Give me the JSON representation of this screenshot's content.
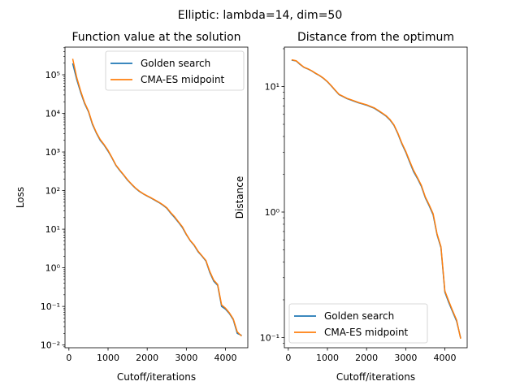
{
  "figure": {
    "suptitle": "Elliptic: lambda=14, dim=50"
  },
  "colors": {
    "golden": "#1f77b4",
    "cma": "#ff7f0e",
    "axis": "#000000",
    "legend_border": "#cccccc"
  },
  "chart_data": [
    {
      "type": "line",
      "title": "Function value at the solution",
      "xlabel": "Cutoff/iterations",
      "ylabel": "Loss",
      "xlim": [
        -100,
        4570
      ],
      "ylim": [
        0.0085,
        520000
      ],
      "yscale": "log",
      "xticks": [
        0,
        1000,
        2000,
        3000,
        4000
      ],
      "xtick_labels": [
        "0",
        "1000",
        "2000",
        "3000",
        "4000"
      ],
      "yticks": [
        0.01,
        0.1,
        1,
        10,
        100,
        1000,
        10000,
        100000
      ],
      "ytick_labels": [
        "10⁻²",
        "10⁻¹",
        "10⁰",
        "10¹",
        "10²",
        "10³",
        "10⁴",
        "10⁵"
      ],
      "legend": {
        "position": "upper right"
      },
      "series": [
        {
          "name": "Golden search",
          "color_key": "golden",
          "x": [
            100,
            200,
            300,
            400,
            500,
            600,
            700,
            800,
            900,
            1000,
            1100,
            1200,
            1300,
            1400,
            1500,
            1600,
            1700,
            1800,
            1900,
            2000,
            2100,
            2200,
            2300,
            2400,
            2500,
            2600,
            2700,
            2800,
            2900,
            3000,
            3100,
            3200,
            3300,
            3400,
            3500,
            3600,
            3700,
            3800,
            3900,
            4000,
            4100,
            4200,
            4300,
            4400
          ],
          "y": [
            190000,
            75000,
            35000,
            18000,
            11000,
            5200,
            3100,
            2000,
            1500,
            1050,
            700,
            450,
            330,
            250,
            185,
            145,
            115,
            95,
            82,
            72,
            64,
            56,
            49,
            42,
            35,
            26,
            20,
            15,
            11,
            7.2,
            5.0,
            3.8,
            2.6,
            2.0,
            1.5,
            0.75,
            0.45,
            0.35,
            0.1,
            0.085,
            0.065,
            0.045,
            0.02,
            0.018
          ]
        },
        {
          "name": "CMA-ES midpoint",
          "color_key": "cma",
          "x": [
            100,
            200,
            300,
            400,
            500,
            600,
            700,
            800,
            900,
            1000,
            1100,
            1200,
            1300,
            1400,
            1500,
            1600,
            1700,
            1800,
            1900,
            2000,
            2100,
            2200,
            2300,
            2400,
            2500,
            2600,
            2700,
            2800,
            2900,
            3000,
            3100,
            3200,
            3300,
            3400,
            3500,
            3600,
            3700,
            3800,
            3900,
            4000,
            4100,
            4200,
            4300,
            4400
          ],
          "y": [
            250000,
            85000,
            38000,
            19000,
            11500,
            5500,
            3200,
            2100,
            1550,
            1100,
            720,
            460,
            340,
            255,
            190,
            148,
            117,
            97,
            83,
            73,
            65,
            57,
            50,
            43,
            36,
            27,
            21,
            15.5,
            11.5,
            7.4,
            5.1,
            3.9,
            2.7,
            2.05,
            1.55,
            0.8,
            0.48,
            0.37,
            0.11,
            0.09,
            0.068,
            0.047,
            0.022,
            0.0175
          ]
        }
      ]
    },
    {
      "type": "line",
      "title": "Distance from the optimum",
      "xlabel": "Cutoff/iterations",
      "ylabel": "Distance",
      "xlim": [
        -100,
        4570
      ],
      "ylim": [
        0.083,
        20.6
      ],
      "yscale": "log",
      "xticks": [
        0,
        1000,
        2000,
        3000,
        4000
      ],
      "xtick_labels": [
        "0",
        "1000",
        "2000",
        "3000",
        "4000"
      ],
      "yticks": [
        0.1,
        1,
        10
      ],
      "ytick_labels": [
        "10⁻¹",
        "10⁰",
        "10¹"
      ],
      "legend": {
        "position": "lower left"
      },
      "series": [
        {
          "name": "Golden search",
          "color_key": "golden",
          "x": [
            100,
            200,
            300,
            400,
            500,
            600,
            700,
            800,
            900,
            1000,
            1100,
            1200,
            1300,
            1400,
            1500,
            1600,
            1700,
            1800,
            1900,
            2000,
            2100,
            2200,
            2300,
            2400,
            2500,
            2600,
            2700,
            2800,
            2900,
            3000,
            3100,
            3200,
            3300,
            3400,
            3500,
            3600,
            3700,
            3800,
            3900,
            4000,
            4100,
            4200,
            4300,
            4400
          ],
          "y": [
            16.2,
            16.0,
            15.0,
            14.2,
            13.8,
            13.3,
            12.7,
            12.2,
            11.6,
            10.9,
            10.1,
            9.3,
            8.6,
            8.3,
            8.0,
            7.8,
            7.6,
            7.4,
            7.25,
            7.1,
            6.9,
            6.7,
            6.4,
            6.1,
            5.8,
            5.4,
            4.9,
            4.2,
            3.5,
            3.0,
            2.5,
            2.1,
            1.85,
            1.6,
            1.3,
            1.12,
            0.95,
            0.66,
            0.52,
            0.23,
            0.19,
            0.16,
            0.135,
            0.1
          ]
        },
        {
          "name": "CMA-ES midpoint",
          "color_key": "cma",
          "x": [
            100,
            200,
            300,
            400,
            500,
            600,
            700,
            800,
            900,
            1000,
            1100,
            1200,
            1300,
            1400,
            1500,
            1600,
            1700,
            1800,
            1900,
            2000,
            2100,
            2200,
            2300,
            2400,
            2500,
            2600,
            2700,
            2800,
            2900,
            3000,
            3100,
            3200,
            3300,
            3400,
            3500,
            3600,
            3700,
            3800,
            3900,
            4000,
            4100,
            4200,
            4300,
            4400
          ],
          "y": [
            16.3,
            16.05,
            15.1,
            14.25,
            13.85,
            13.35,
            12.75,
            12.25,
            11.65,
            10.95,
            10.15,
            9.35,
            8.65,
            8.35,
            8.05,
            7.85,
            7.65,
            7.45,
            7.3,
            7.15,
            6.95,
            6.75,
            6.45,
            6.15,
            5.85,
            5.45,
            4.95,
            4.25,
            3.55,
            3.05,
            2.55,
            2.15,
            1.88,
            1.63,
            1.32,
            1.14,
            0.97,
            0.67,
            0.53,
            0.235,
            0.195,
            0.163,
            0.138,
            0.099
          ]
        }
      ]
    }
  ]
}
